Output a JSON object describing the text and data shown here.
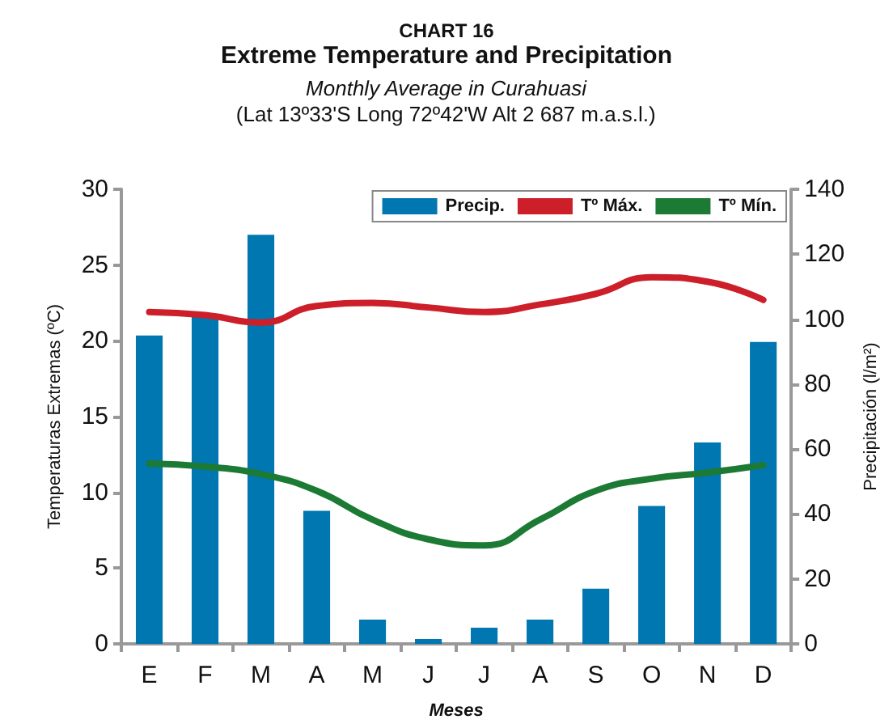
{
  "chart_data": {
    "type": "bar",
    "title": "CHART 16",
    "subtitle": "Extreme Temperature and Precipitation",
    "annotations": [
      "Monthly Average in Curahuasi",
      "(Lat 13º33'S Long 72º42'W Alt 2 687 m.a.s.l.)"
    ],
    "xlabel": "Meses",
    "ylabel": "Temperaturas Extremas (ºC)",
    "y2label": "Precipitación (l/m²)",
    "categories": [
      "E",
      "F",
      "M",
      "A",
      "M",
      "J",
      "J",
      "A",
      "S",
      "O",
      "N",
      "D"
    ],
    "series": [
      {
        "name": "Precip.",
        "axis": "y2",
        "color": "#0077b0",
        "values": [
          95,
          101,
          126,
          41,
          7.5,
          1.5,
          5,
          7.5,
          17,
          42.5,
          62,
          93
        ]
      },
      {
        "name": "Tº Máx.",
        "type": "line",
        "color": "#cc1f2a",
        "values": [
          21.9,
          21.7,
          21.2,
          22.3,
          22.5,
          22.2,
          21.9,
          22.4,
          23.1,
          24.2,
          23.9,
          22.7
        ]
      },
      {
        "name": "Tº Mín.",
        "type": "line",
        "color": "#1c7a34",
        "values": [
          11.9,
          11.7,
          11.2,
          10.1,
          8.2,
          6.9,
          6.5,
          8.2,
          10.1,
          10.9,
          11.3,
          11.8
        ]
      }
    ],
    "ylim": [
      0,
      30
    ],
    "yticks": [
      0,
      5,
      10,
      15,
      20,
      25,
      30
    ],
    "y2lim": [
      0,
      140
    ],
    "y2ticks": [
      0,
      20,
      40,
      60,
      80,
      100,
      120,
      140
    ],
    "legend": "top right",
    "grid": false,
    "marker": "none",
    "line_style": "solid"
  }
}
